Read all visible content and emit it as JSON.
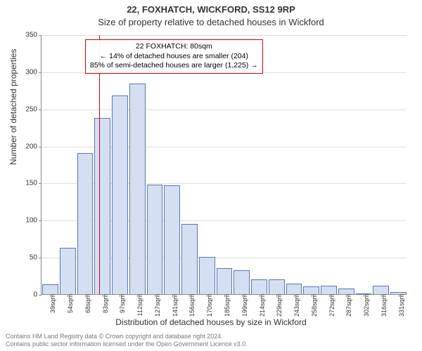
{
  "chart": {
    "type": "histogram",
    "address_title": "22, FOXHATCH, WICKFORD, SS12 9RP",
    "subtitle": "Size of property relative to detached houses in Wickford",
    "ylabel": "Number of detached properties",
    "xlabel": "Distribution of detached houses by size in Wickford",
    "ylim": [
      0,
      350
    ],
    "ytick_step": 50,
    "yticks": [
      0,
      50,
      100,
      150,
      200,
      250,
      300,
      350
    ],
    "categories": [
      "39sqm",
      "54sqm",
      "68sqm",
      "83sqm",
      "97sqm",
      "112sqm",
      "127sqm",
      "141sqm",
      "156sqm",
      "170sqm",
      "185sqm",
      "199sqm",
      "214sqm",
      "229sqm",
      "243sqm",
      "258sqm",
      "272sqm",
      "287sqm",
      "302sqm",
      "316sqm",
      "331sqm"
    ],
    "values": [
      13,
      62,
      190,
      237,
      268,
      284,
      148,
      147,
      95,
      50,
      35,
      32,
      20,
      20,
      14,
      10,
      11,
      8,
      0,
      11,
      3
    ],
    "bar_fill": "#d5dff2",
    "bar_stroke": "#5a74b5",
    "grid_color": "#dddddd",
    "axis_color": "#888888",
    "background_color": "#ffffff",
    "marker_line": {
      "x_value": 80,
      "color": "#d40000"
    },
    "tick_fontsize": 10,
    "label_fontsize": 12,
    "title_fontsize": 13,
    "annotation": {
      "border_color": "#d40000",
      "line1": "22 FOXHATCH: 80sqm",
      "line2": "← 14% of detached houses are smaller (204)",
      "line3": "85% of semi-detached houses are larger (1,225) →"
    },
    "footer1": "Contains HM Land Registry data © Crown copyright and database right 2024.",
    "footer2": "Contains public sector information licensed under the Open Government Licence v3.0."
  }
}
